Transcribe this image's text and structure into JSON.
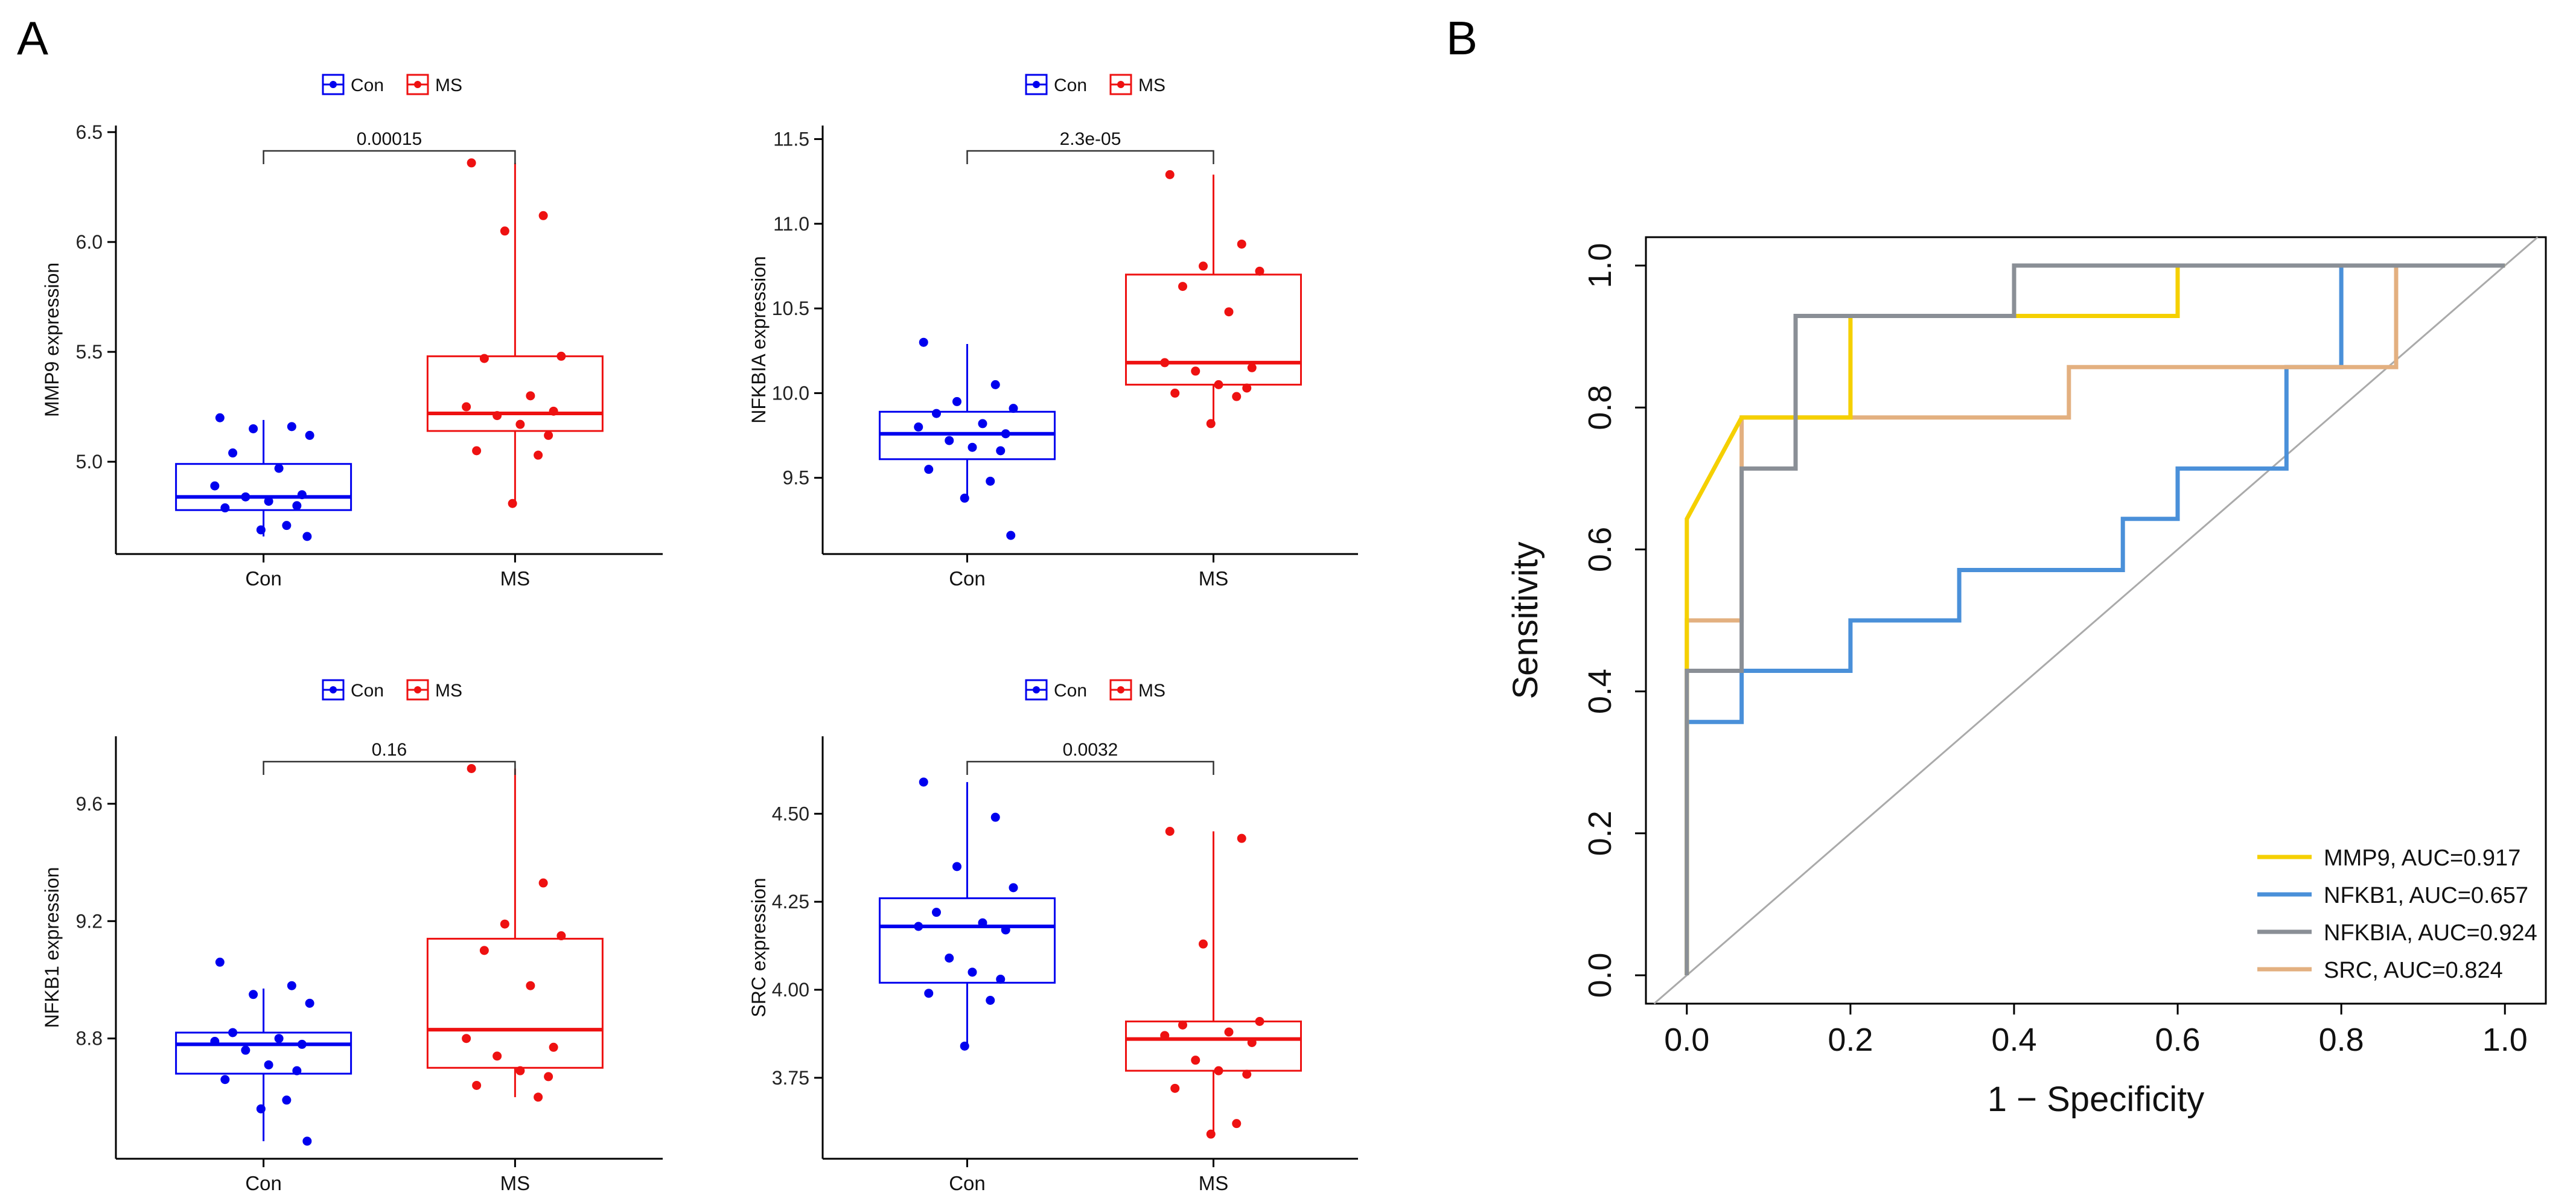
{
  "panels": {
    "A": {
      "label": "A"
    },
    "B": {
      "label": "B"
    }
  },
  "colors": {
    "con": "#0000ee",
    "ms": "#ee1111",
    "bracket": "#333333",
    "axis": "#000000",
    "diagonal": "#aaaaaa",
    "MMP9": "#f5d000",
    "NFKB1": "#4a90d9",
    "NFKBIA": "#8a8f96",
    "SRC": "#e3b080"
  },
  "chart_data": [
    {
      "type": "box",
      "id": "mmp9",
      "ylabel": "MMP9 expression",
      "categories": [
        "Con",
        "MS"
      ],
      "legend": [
        "Con",
        "MS"
      ],
      "pvalue": "0.00015",
      "ylim": [
        4.58,
        6.53
      ],
      "yticks": [
        5.0,
        5.5,
        6.0,
        6.5
      ],
      "ytick_labels": [
        "5.0",
        "5.5",
        "6.0",
        "6.5"
      ],
      "boxes": [
        {
          "group": "Con",
          "q1": 4.78,
          "median": 4.84,
          "q3": 4.99,
          "whisker_low": 4.66,
          "whisker_high": 5.19
        },
        {
          "group": "MS",
          "q1": 5.14,
          "median": 5.22,
          "q3": 5.48,
          "whisker_low": 4.81,
          "whisker_high": 6.36
        }
      ],
      "points": {
        "Con": [
          5.2,
          5.16,
          5.15,
          5.12,
          5.04,
          4.97,
          4.89,
          4.85,
          4.84,
          4.82,
          4.8,
          4.79,
          4.71,
          4.69,
          4.66
        ],
        "MS": [
          6.36,
          6.12,
          6.05,
          5.48,
          5.47,
          5.3,
          5.25,
          5.23,
          5.21,
          5.17,
          5.12,
          5.05,
          5.03,
          4.81
        ]
      }
    },
    {
      "type": "box",
      "id": "nfkbia",
      "ylabel": "NFKBIA expression",
      "categories": [
        "Con",
        "MS"
      ],
      "legend": [
        "Con",
        "MS"
      ],
      "pvalue": "2.3e-05",
      "ylim": [
        9.05,
        11.58
      ],
      "yticks": [
        9.5,
        10.0,
        10.5,
        11.0,
        11.5
      ],
      "ytick_labels": [
        "9.5",
        "10.0",
        "10.5",
        "11.0",
        "11.5"
      ],
      "boxes": [
        {
          "group": "Con",
          "q1": 9.61,
          "median": 9.76,
          "q3": 9.89,
          "whisker_low": 9.38,
          "whisker_high": 10.29
        },
        {
          "group": "MS",
          "q1": 10.05,
          "median": 10.18,
          "q3": 10.7,
          "whisker_low": 9.82,
          "whisker_high": 11.29
        }
      ],
      "points": {
        "Con": [
          10.3,
          10.05,
          9.95,
          9.91,
          9.88,
          9.82,
          9.8,
          9.76,
          9.72,
          9.68,
          9.66,
          9.55,
          9.48,
          9.38,
          9.16
        ],
        "MS": [
          11.29,
          10.88,
          10.75,
          10.72,
          10.63,
          10.48,
          10.18,
          10.15,
          10.13,
          10.05,
          10.03,
          10.0,
          9.98,
          9.82
        ]
      }
    },
    {
      "type": "box",
      "id": "nfkb1",
      "ylabel": "NFKB1 expression",
      "categories": [
        "Con",
        "MS"
      ],
      "legend": [
        "Con",
        "MS"
      ],
      "pvalue": "0.16",
      "ylim": [
        8.39,
        9.83
      ],
      "yticks": [
        8.8,
        9.2,
        9.6
      ],
      "ytick_labels": [
        "8.8",
        "9.2",
        "9.6"
      ],
      "boxes": [
        {
          "group": "Con",
          "q1": 8.68,
          "median": 8.78,
          "q3": 8.82,
          "whisker_low": 8.45,
          "whisker_high": 8.97
        },
        {
          "group": "MS",
          "q1": 8.7,
          "median": 8.83,
          "q3": 9.14,
          "whisker_low": 8.6,
          "whisker_high": 9.72
        }
      ],
      "points": {
        "Con": [
          9.06,
          8.98,
          8.95,
          8.92,
          8.82,
          8.8,
          8.79,
          8.78,
          8.76,
          8.71,
          8.69,
          8.66,
          8.59,
          8.56,
          8.45
        ],
        "MS": [
          9.72,
          9.33,
          9.19,
          9.15,
          9.1,
          8.98,
          8.8,
          8.77,
          8.74,
          8.69,
          8.67,
          8.64,
          8.6
        ]
      }
    },
    {
      "type": "box",
      "id": "src",
      "ylabel": "SRC expression",
      "categories": [
        "Con",
        "MS"
      ],
      "legend": [
        "Con",
        "MS"
      ],
      "pvalue": "0.0032",
      "ylim": [
        3.52,
        4.72
      ],
      "yticks": [
        3.75,
        4.0,
        4.25,
        4.5
      ],
      "ytick_labels": [
        "3.75",
        "4.00",
        "4.25",
        "4.50"
      ],
      "boxes": [
        {
          "group": "Con",
          "q1": 4.02,
          "median": 4.18,
          "q3": 4.26,
          "whisker_low": 3.84,
          "whisker_high": 4.59
        },
        {
          "group": "MS",
          "q1": 3.77,
          "median": 3.86,
          "q3": 3.91,
          "whisker_low": 3.59,
          "whisker_high": 4.45
        }
      ],
      "points": {
        "Con": [
          4.59,
          4.49,
          4.35,
          4.29,
          4.22,
          4.19,
          4.18,
          4.17,
          4.09,
          4.05,
          4.03,
          3.99,
          3.97,
          3.84
        ],
        "MS": [
          4.45,
          4.43,
          4.13,
          3.91,
          3.9,
          3.88,
          3.87,
          3.85,
          3.8,
          3.77,
          3.76,
          3.72,
          3.62,
          3.59
        ]
      }
    },
    {
      "type": "line",
      "id": "roc",
      "xlabel": "1 − Specificity",
      "ylabel": "Sensitivity",
      "xlim": [
        -0.05,
        1.05
      ],
      "ylim": [
        -0.04,
        1.04
      ],
      "xticks": [
        0.0,
        0.2,
        0.4,
        0.6,
        0.8,
        1.0
      ],
      "xtick_labels": [
        "0.0",
        "0.2",
        "0.4",
        "0.6",
        "0.8",
        "1.0"
      ],
      "yticks": [
        0.0,
        0.2,
        0.4,
        0.6,
        0.8,
        1.0
      ],
      "ytick_labels": [
        "0.0",
        "0.2",
        "0.4",
        "0.6",
        "0.8",
        "1.0"
      ],
      "diagonal": {
        "from": [
          -0.04,
          -0.04
        ],
        "to": [
          1.04,
          1.04
        ]
      },
      "legend_position": "bottom-right",
      "series": [
        {
          "name": "MMP9",
          "label": "MMP9, AUC=0.917",
          "points": [
            [
              0,
              0
            ],
            [
              0,
              0.643
            ],
            [
              0.067,
              0.786
            ],
            [
              0.2,
              0.786
            ],
            [
              0.2,
              0.929
            ],
            [
              0.6,
              0.929
            ],
            [
              0.6,
              1.0
            ],
            [
              1.0,
              1.0
            ]
          ]
        },
        {
          "name": "NFKB1",
          "label": "NFKB1, AUC=0.657",
          "points": [
            [
              0,
              0
            ],
            [
              0,
              0.357
            ],
            [
              0.067,
              0.357
            ],
            [
              0.067,
              0.429
            ],
            [
              0.2,
              0.429
            ],
            [
              0.2,
              0.5
            ],
            [
              0.333,
              0.5
            ],
            [
              0.333,
              0.571
            ],
            [
              0.533,
              0.571
            ],
            [
              0.533,
              0.643
            ],
            [
              0.6,
              0.643
            ],
            [
              0.6,
              0.714
            ],
            [
              0.733,
              0.714
            ],
            [
              0.733,
              0.857
            ],
            [
              0.8,
              0.857
            ],
            [
              0.8,
              1.0
            ],
            [
              1.0,
              1.0
            ]
          ]
        },
        {
          "name": "NFKBIA",
          "label": "NFKBIA, AUC=0.924",
          "points": [
            [
              0,
              0
            ],
            [
              0,
              0.429
            ],
            [
              0.067,
              0.429
            ],
            [
              0.067,
              0.714
            ],
            [
              0.133,
              0.714
            ],
            [
              0.133,
              0.929
            ],
            [
              0.4,
              0.929
            ],
            [
              0.4,
              1.0
            ],
            [
              1.0,
              1.0
            ]
          ]
        },
        {
          "name": "SRC",
          "label": "SRC, AUC=0.824",
          "points": [
            [
              0,
              0
            ],
            [
              0,
              0.5
            ],
            [
              0.067,
              0.5
            ],
            [
              0.067,
              0.786
            ],
            [
              0.467,
              0.786
            ],
            [
              0.467,
              0.857
            ],
            [
              0.867,
              0.857
            ],
            [
              0.867,
              1.0
            ],
            [
              1.0,
              1.0
            ]
          ]
        }
      ]
    }
  ]
}
